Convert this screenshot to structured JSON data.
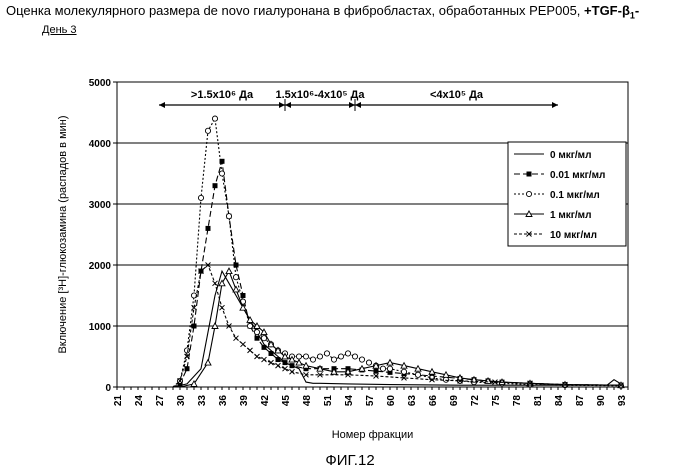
{
  "header": {
    "title_main": "Оценка молекулярного размера de novo гиалуронана в фибробластах, обработанных PEP005, ",
    "title_bold": "+TGF-β",
    "title_bold_sub": "1",
    "title_bold_end": "-",
    "day_label": "День 3"
  },
  "figure_caption": "ФИГ.12",
  "chart_data": {
    "type": "line",
    "xlabel": "Номер фракции",
    "ylabel": "Включение [³H]-глюкозамина (распадов в мин)",
    "ylim": [
      0,
      5000
    ],
    "xlim": [
      21,
      94
    ],
    "yticks": [
      0,
      1000,
      2000,
      3000,
      4000,
      5000
    ],
    "xticks": [
      21,
      24,
      27,
      30,
      33,
      36,
      39,
      42,
      45,
      48,
      51,
      54,
      57,
      60,
      63,
      66,
      69,
      72,
      75,
      78,
      81,
      84,
      87,
      90,
      93
    ],
    "grid": "horizontal",
    "legend_position": "right",
    "size_ranges": [
      {
        "label": ">1.5x10⁶ Да",
        "from": 27,
        "to": 45
      },
      {
        "label": "1.5x10⁶-4x10⁵ Да",
        "from": 45,
        "to": 55
      },
      {
        "label": "<4x10⁵ Да",
        "from": 55,
        "to": 84
      }
    ],
    "series": [
      {
        "name": "0 мкг/мл",
        "color": "#000000",
        "marker": "none",
        "dash": "",
        "points": [
          [
            21,
            0
          ],
          [
            29,
            0
          ],
          [
            31,
            50
          ],
          [
            33,
            300
          ],
          [
            34,
            900
          ],
          [
            35,
            1500
          ],
          [
            36,
            1900
          ],
          [
            37,
            1700
          ],
          [
            38,
            1500
          ],
          [
            39,
            1300
          ],
          [
            40,
            1100
          ],
          [
            41,
            900
          ],
          [
            42,
            700
          ],
          [
            43,
            600
          ],
          [
            44,
            500
          ],
          [
            45,
            400
          ],
          [
            46,
            350
          ],
          [
            47,
            300
          ],
          [
            48,
            80
          ],
          [
            49,
            60
          ],
          [
            50,
            60
          ],
          [
            54,
            50
          ],
          [
            60,
            40
          ],
          [
            70,
            30
          ],
          [
            80,
            30
          ],
          [
            90,
            30
          ],
          [
            91,
            30
          ],
          [
            92,
            120
          ],
          [
            93,
            50
          ]
        ]
      },
      {
        "name": "0.01 мкг/мл",
        "color": "#000000",
        "marker": "square",
        "dash": "6,3",
        "points": [
          [
            21,
            0
          ],
          [
            29,
            0
          ],
          [
            30,
            50
          ],
          [
            31,
            300
          ],
          [
            32,
            1000
          ],
          [
            33,
            1900
          ],
          [
            34,
            2600
          ],
          [
            35,
            3300
          ],
          [
            36,
            3700
          ],
          [
            37,
            2800
          ],
          [
            38,
            2000
          ],
          [
            39,
            1500
          ],
          [
            40,
            1000
          ],
          [
            41,
            800
          ],
          [
            42,
            650
          ],
          [
            43,
            550
          ],
          [
            44,
            450
          ],
          [
            45,
            400
          ],
          [
            46,
            350
          ],
          [
            48,
            300
          ],
          [
            50,
            300
          ],
          [
            52,
            300
          ],
          [
            54,
            300
          ],
          [
            56,
            280
          ],
          [
            58,
            260
          ],
          [
            60,
            240
          ],
          [
            62,
            220
          ],
          [
            64,
            200
          ],
          [
            66,
            180
          ],
          [
            68,
            160
          ],
          [
            70,
            140
          ],
          [
            72,
            120
          ],
          [
            74,
            100
          ],
          [
            76,
            80
          ],
          [
            80,
            60
          ],
          [
            85,
            40
          ],
          [
            93,
            30
          ]
        ]
      },
      {
        "name": "0.1 мкг/мл",
        "color": "#000000",
        "marker": "circle",
        "dash": "2,2",
        "points": [
          [
            21,
            0
          ],
          [
            29,
            0
          ],
          [
            30,
            100
          ],
          [
            31,
            600
          ],
          [
            32,
            1500
          ],
          [
            33,
            3100
          ],
          [
            34,
            4200
          ],
          [
            35,
            4400
          ],
          [
            36,
            3500
          ],
          [
            37,
            2800
          ],
          [
            38,
            1800
          ],
          [
            39,
            1400
          ],
          [
            40,
            1000
          ],
          [
            41,
            900
          ],
          [
            42,
            800
          ],
          [
            43,
            700
          ],
          [
            44,
            600
          ],
          [
            45,
            550
          ],
          [
            46,
            500
          ],
          [
            47,
            500
          ],
          [
            48,
            500
          ],
          [
            49,
            450
          ],
          [
            50,
            500
          ],
          [
            51,
            550
          ],
          [
            52,
            450
          ],
          [
            53,
            500
          ],
          [
            54,
            550
          ],
          [
            55,
            500
          ],
          [
            56,
            450
          ],
          [
            57,
            400
          ],
          [
            58,
            350
          ],
          [
            59,
            300
          ],
          [
            60,
            300
          ],
          [
            62,
            250
          ],
          [
            64,
            200
          ],
          [
            66,
            150
          ],
          [
            68,
            120
          ],
          [
            70,
            100
          ],
          [
            72,
            80
          ],
          [
            76,
            60
          ],
          [
            80,
            40
          ],
          [
            85,
            30
          ],
          [
            93,
            20
          ]
        ]
      },
      {
        "name": "1 мкг/мл",
        "color": "#000000",
        "marker": "triangle",
        "dash": "",
        "points": [
          [
            21,
            0
          ],
          [
            30,
            0
          ],
          [
            32,
            50
          ],
          [
            34,
            400
          ],
          [
            35,
            1000
          ],
          [
            36,
            1700
          ],
          [
            37,
            1900
          ],
          [
            38,
            1600
          ],
          [
            39,
            1300
          ],
          [
            40,
            1100
          ],
          [
            41,
            1000
          ],
          [
            42,
            900
          ],
          [
            43,
            700
          ],
          [
            44,
            600
          ],
          [
            45,
            500
          ],
          [
            46,
            450
          ],
          [
            47,
            400
          ],
          [
            48,
            350
          ],
          [
            50,
            300
          ],
          [
            52,
            250
          ],
          [
            54,
            250
          ],
          [
            56,
            300
          ],
          [
            58,
            350
          ],
          [
            60,
            400
          ],
          [
            62,
            350
          ],
          [
            64,
            300
          ],
          [
            66,
            250
          ],
          [
            68,
            200
          ],
          [
            70,
            150
          ],
          [
            72,
            120
          ],
          [
            74,
            100
          ],
          [
            76,
            80
          ],
          [
            80,
            60
          ],
          [
            85,
            40
          ],
          [
            93,
            30
          ]
        ]
      },
      {
        "name": "10 мкг/мл",
        "color": "#000000",
        "marker": "x",
        "dash": "3,2",
        "points": [
          [
            21,
            0
          ],
          [
            29,
            0
          ],
          [
            30,
            100
          ],
          [
            31,
            500
          ],
          [
            32,
            1300
          ],
          [
            33,
            1900
          ],
          [
            34,
            2000
          ],
          [
            35,
            1700
          ],
          [
            36,
            1300
          ],
          [
            37,
            1000
          ],
          [
            38,
            800
          ],
          [
            39,
            700
          ],
          [
            40,
            600
          ],
          [
            41,
            500
          ],
          [
            42,
            450
          ],
          [
            43,
            400
          ],
          [
            44,
            350
          ],
          [
            45,
            300
          ],
          [
            46,
            250
          ],
          [
            48,
            200
          ],
          [
            50,
            200
          ],
          [
            54,
            200
          ],
          [
            58,
            180
          ],
          [
            62,
            150
          ],
          [
            66,
            120
          ],
          [
            70,
            100
          ],
          [
            75,
            80
          ],
          [
            80,
            60
          ],
          [
            85,
            40
          ],
          [
            93,
            30
          ]
        ]
      }
    ]
  }
}
